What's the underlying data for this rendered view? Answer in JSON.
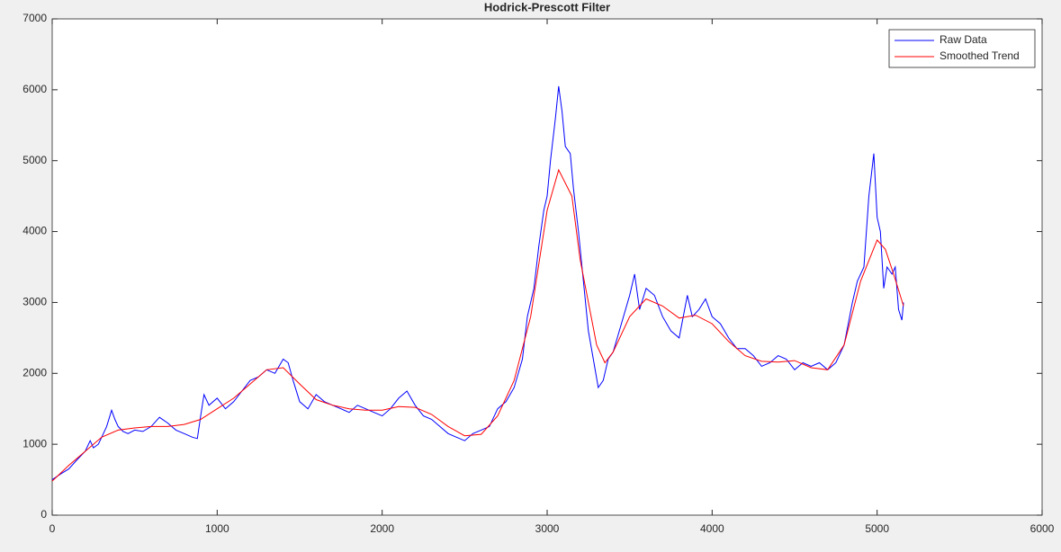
{
  "chart_data": {
    "type": "line",
    "title": "Hodrick-Prescott Filter",
    "xlim": [
      0,
      6000
    ],
    "xticks": [
      0,
      1000,
      2000,
      3000,
      4000,
      5000,
      6000
    ],
    "ylim": [
      0,
      7000
    ],
    "yticks": [
      0,
      1000,
      2000,
      3000,
      4000,
      5000,
      6000,
      7000
    ],
    "legend": "northeast",
    "box": true,
    "series": [
      {
        "name": "Raw Data",
        "color": "#0000ff",
        "x": [
          0,
          50,
          100,
          150,
          200,
          230,
          250,
          280,
          300,
          330,
          360,
          380,
          400,
          430,
          460,
          500,
          550,
          600,
          650,
          700,
          750,
          800,
          850,
          880,
          900,
          920,
          950,
          1000,
          1050,
          1100,
          1150,
          1200,
          1250,
          1300,
          1350,
          1400,
          1430,
          1460,
          1500,
          1550,
          1600,
          1650,
          1700,
          1750,
          1800,
          1850,
          1900,
          1950,
          2000,
          2050,
          2100,
          2150,
          2200,
          2250,
          2300,
          2350,
          2400,
          2450,
          2500,
          2550,
          2600,
          2650,
          2700,
          2750,
          2800,
          2850,
          2880,
          2920,
          2950,
          2980,
          3000,
          3020,
          3050,
          3070,
          3090,
          3110,
          3140,
          3160,
          3190,
          3220,
          3250,
          3280,
          3310,
          3340,
          3370,
          3400,
          3450,
          3500,
          3530,
          3560,
          3600,
          3650,
          3700,
          3750,
          3800,
          3850,
          3880,
          3920,
          3960,
          4000,
          4050,
          4100,
          4150,
          4200,
          4250,
          4300,
          4350,
          4400,
          4450,
          4500,
          4550,
          4600,
          4650,
          4700,
          4750,
          4800,
          4850,
          4880,
          4920,
          4950,
          4980,
          5000,
          5020,
          5040,
          5060,
          5090,
          5110,
          5130,
          5150,
          5160
        ],
        "values": [
          500,
          580,
          650,
          780,
          900,
          1050,
          950,
          1000,
          1100,
          1250,
          1480,
          1350,
          1250,
          1180,
          1150,
          1200,
          1180,
          1250,
          1380,
          1300,
          1200,
          1150,
          1100,
          1080,
          1400,
          1700,
          1550,
          1650,
          1500,
          1600,
          1750,
          1900,
          1950,
          2050,
          2000,
          2200,
          2150,
          1900,
          1600,
          1500,
          1700,
          1600,
          1550,
          1500,
          1450,
          1550,
          1500,
          1450,
          1400,
          1500,
          1650,
          1750,
          1550,
          1400,
          1350,
          1250,
          1150,
          1100,
          1050,
          1150,
          1200,
          1250,
          1500,
          1600,
          1800,
          2200,
          2800,
          3200,
          3800,
          4300,
          4500,
          5000,
          5600,
          6050,
          5700,
          5200,
          5100,
          4600,
          4000,
          3300,
          2600,
          2200,
          1800,
          1900,
          2200,
          2300,
          2700,
          3100,
          3400,
          2900,
          3200,
          3100,
          2800,
          2600,
          2500,
          3100,
          2800,
          2900,
          3050,
          2800,
          2700,
          2500,
          2350,
          2350,
          2250,
          2100,
          2150,
          2250,
          2200,
          2050,
          2150,
          2100,
          2150,
          2050,
          2150,
          2400,
          3000,
          3300,
          3500,
          4500,
          5100,
          4200,
          4000,
          3200,
          3500,
          3400,
          3500,
          2900,
          2750,
          3000
        ]
      },
      {
        "name": "Smoothed Trend",
        "color": "#ff0000",
        "x": [
          0,
          100,
          200,
          300,
          400,
          500,
          600,
          700,
          800,
          900,
          1000,
          1100,
          1200,
          1300,
          1400,
          1500,
          1600,
          1700,
          1800,
          1900,
          2000,
          2100,
          2200,
          2300,
          2400,
          2500,
          2600,
          2700,
          2800,
          2900,
          3000,
          3070,
          3150,
          3200,
          3300,
          3350,
          3400,
          3500,
          3600,
          3700,
          3800,
          3900,
          4000,
          4100,
          4200,
          4300,
          4400,
          4500,
          4600,
          4700,
          4800,
          4900,
          5000,
          5050,
          5100,
          5160
        ],
        "values": [
          480,
          700,
          900,
          1100,
          1200,
          1230,
          1250,
          1250,
          1280,
          1350,
          1500,
          1650,
          1850,
          2050,
          2080,
          1850,
          1630,
          1550,
          1500,
          1480,
          1480,
          1530,
          1520,
          1420,
          1250,
          1120,
          1140,
          1400,
          1900,
          2800,
          4300,
          4870,
          4500,
          3600,
          2400,
          2150,
          2300,
          2800,
          3050,
          2950,
          2780,
          2820,
          2700,
          2450,
          2250,
          2170,
          2160,
          2180,
          2080,
          2050,
          2400,
          3300,
          3880,
          3750,
          3400,
          2950
        ]
      }
    ]
  }
}
